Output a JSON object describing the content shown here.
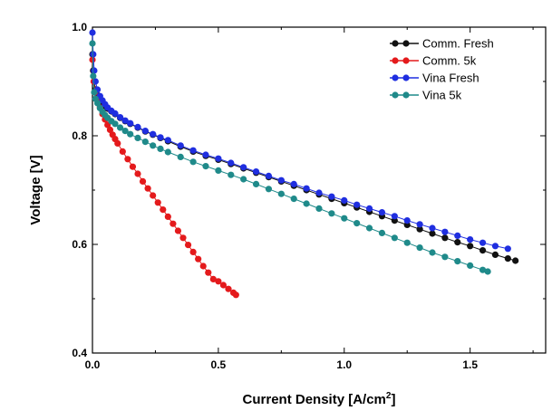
{
  "chart_data": {
    "type": "scatter",
    "title": "",
    "xlabel": "Current Density [A/cm",
    "xlabel_sup": "2",
    "xlabel_end": "]",
    "ylabel": "Voltage [V]",
    "xlim": [
      0.0,
      1.8
    ],
    "ylim": [
      0.4,
      1.0
    ],
    "x_ticks": [
      "0.0",
      "0.5",
      "1.0",
      "1.5"
    ],
    "y_ticks": [
      "0.4",
      "0.6",
      "0.8",
      "1.0"
    ],
    "grid": false,
    "legend_position": "top-right",
    "series": [
      {
        "name": "Comm. Fresh",
        "color": "#111111",
        "x": [
          0.0,
          0.003,
          0.007,
          0.012,
          0.02,
          0.03,
          0.04,
          0.05,
          0.06,
          0.075,
          0.09,
          0.11,
          0.13,
          0.15,
          0.18,
          0.21,
          0.24,
          0.27,
          0.3,
          0.35,
          0.4,
          0.45,
          0.5,
          0.55,
          0.6,
          0.65,
          0.7,
          0.75,
          0.8,
          0.85,
          0.9,
          0.95,
          1.0,
          1.05,
          1.1,
          1.15,
          1.2,
          1.25,
          1.3,
          1.35,
          1.4,
          1.45,
          1.5,
          1.55,
          1.6,
          1.65,
          1.68
        ],
        "y": [
          0.95,
          0.92,
          0.9,
          0.885,
          0.875,
          0.866,
          0.86,
          0.855,
          0.85,
          0.845,
          0.84,
          0.833,
          0.827,
          0.822,
          0.815,
          0.808,
          0.802,
          0.796,
          0.79,
          0.78,
          0.771,
          0.763,
          0.756,
          0.748,
          0.74,
          0.732,
          0.724,
          0.716,
          0.708,
          0.7,
          0.692,
          0.684,
          0.676,
          0.668,
          0.66,
          0.652,
          0.644,
          0.636,
          0.628,
          0.62,
          0.612,
          0.604,
          0.597,
          0.589,
          0.581,
          0.574,
          0.57
        ]
      },
      {
        "name": "Comm. 5k",
        "color": "#e41a1c",
        "x": [
          0.0,
          0.005,
          0.01,
          0.02,
          0.03,
          0.04,
          0.05,
          0.06,
          0.07,
          0.08,
          0.09,
          0.1,
          0.12,
          0.14,
          0.16,
          0.18,
          0.2,
          0.22,
          0.24,
          0.26,
          0.28,
          0.3,
          0.32,
          0.34,
          0.36,
          0.38,
          0.4,
          0.42,
          0.44,
          0.46,
          0.48,
          0.5,
          0.52,
          0.54,
          0.56,
          0.57
        ],
        "y": [
          0.94,
          0.9,
          0.88,
          0.865,
          0.852,
          0.84,
          0.83,
          0.82,
          0.811,
          0.802,
          0.794,
          0.786,
          0.771,
          0.757,
          0.743,
          0.73,
          0.716,
          0.703,
          0.69,
          0.677,
          0.664,
          0.651,
          0.638,
          0.625,
          0.612,
          0.599,
          0.586,
          0.573,
          0.56,
          0.548,
          0.536,
          0.532,
          0.525,
          0.518,
          0.511,
          0.507
        ]
      },
      {
        "name": "Vina Fresh",
        "color": "#1f2ee0",
        "x": [
          0.0,
          0.003,
          0.007,
          0.012,
          0.02,
          0.03,
          0.04,
          0.05,
          0.06,
          0.075,
          0.09,
          0.11,
          0.13,
          0.15,
          0.18,
          0.21,
          0.24,
          0.27,
          0.3,
          0.35,
          0.4,
          0.45,
          0.5,
          0.55,
          0.6,
          0.65,
          0.7,
          0.75,
          0.8,
          0.85,
          0.9,
          0.95,
          1.0,
          1.05,
          1.1,
          1.15,
          1.2,
          1.25,
          1.3,
          1.35,
          1.4,
          1.45,
          1.5,
          1.55,
          1.6,
          1.65
        ],
        "y": [
          0.99,
          0.95,
          0.92,
          0.9,
          0.885,
          0.873,
          0.865,
          0.858,
          0.852,
          0.846,
          0.841,
          0.834,
          0.828,
          0.823,
          0.816,
          0.809,
          0.803,
          0.797,
          0.792,
          0.782,
          0.773,
          0.765,
          0.758,
          0.75,
          0.742,
          0.734,
          0.726,
          0.718,
          0.711,
          0.703,
          0.695,
          0.688,
          0.681,
          0.673,
          0.666,
          0.659,
          0.652,
          0.644,
          0.637,
          0.63,
          0.623,
          0.616,
          0.609,
          0.603,
          0.597,
          0.592
        ]
      },
      {
        "name": "Vina 5k",
        "color": "#1f8a8a",
        "x": [
          0.0,
          0.003,
          0.007,
          0.012,
          0.02,
          0.03,
          0.04,
          0.05,
          0.06,
          0.075,
          0.09,
          0.11,
          0.13,
          0.15,
          0.18,
          0.21,
          0.24,
          0.27,
          0.3,
          0.35,
          0.4,
          0.45,
          0.5,
          0.55,
          0.6,
          0.65,
          0.7,
          0.75,
          0.8,
          0.85,
          0.9,
          0.95,
          1.0,
          1.05,
          1.1,
          1.15,
          1.2,
          1.25,
          1.3,
          1.35,
          1.4,
          1.45,
          1.5,
          1.55,
          1.57
        ],
        "y": [
          0.97,
          0.91,
          0.88,
          0.868,
          0.86,
          0.851,
          0.844,
          0.838,
          0.833,
          0.827,
          0.822,
          0.815,
          0.809,
          0.803,
          0.796,
          0.789,
          0.782,
          0.776,
          0.77,
          0.761,
          0.752,
          0.744,
          0.736,
          0.728,
          0.72,
          0.711,
          0.702,
          0.693,
          0.684,
          0.675,
          0.666,
          0.657,
          0.648,
          0.639,
          0.63,
          0.621,
          0.612,
          0.603,
          0.594,
          0.585,
          0.577,
          0.569,
          0.561,
          0.553,
          0.55
        ]
      }
    ]
  }
}
